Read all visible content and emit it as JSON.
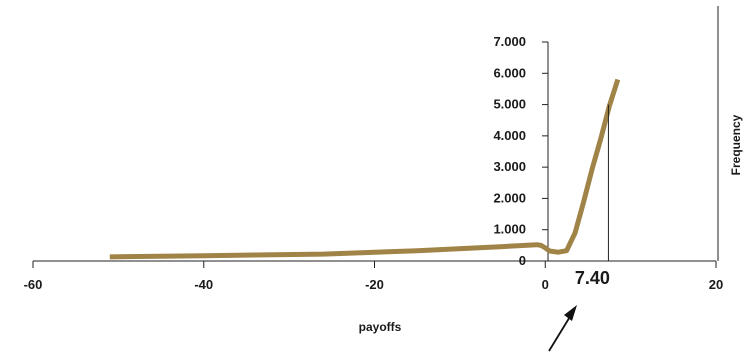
{
  "chart_data": {
    "type": "line",
    "xlabel": "payoffs",
    "ylabel": "Frequency",
    "xlim": [
      -60,
      20
    ],
    "ylim": [
      0,
      7000
    ],
    "x_ticks": [
      -60,
      -40,
      -20,
      0,
      20
    ],
    "x_tick_labels": [
      "-60",
      "-40",
      "-20",
      "0",
      "20"
    ],
    "y_ticks": [
      0,
      1000,
      2000,
      3000,
      4000,
      5000,
      6000,
      7000
    ],
    "y_tick_labels": [
      "0",
      "1.000",
      "2.000",
      "3.000",
      "4.000",
      "5.000",
      "6.000",
      "7.000"
    ],
    "grid": false,
    "series": [
      {
        "color": "#a08447",
        "x": [
          -51,
          -40,
          -26,
          -15,
          -5,
          -1,
          -0.5,
          0,
          0.5,
          1.5,
          2.5,
          3.5,
          4.5,
          5.5,
          6.5,
          7.5,
          8.5
        ],
        "y": [
          130,
          170,
          220,
          330,
          460,
          520,
          500,
          420,
          320,
          280,
          330,
          900,
          1900,
          2950,
          3900,
          4950,
          5800
        ]
      }
    ],
    "annotations": [
      {
        "label": "7.40",
        "x": 7.4,
        "line_top": 5000,
        "arrow": true
      }
    ]
  }
}
